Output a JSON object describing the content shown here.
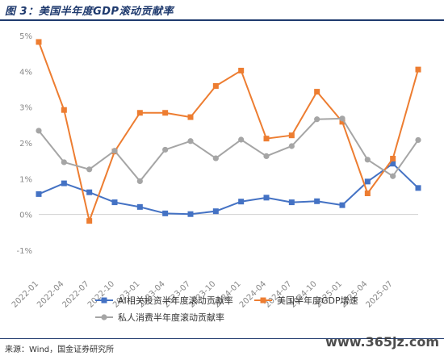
{
  "title": "图 3：美国半年度GDP滚动贡献率",
  "source": "来源：Wind，国金证券研究所",
  "watermark": "www.365jz.com",
  "chart_data": {
    "type": "line",
    "x": [
      "2022-01",
      "2022-02",
      "2022-03",
      "2022-04",
      "2022-05",
      "2022-06",
      "2022-07",
      "2022-08",
      "2022-09",
      "2022-10",
      "2022-11",
      "2022-12",
      "2023-01",
      "2023-02",
      "2023-03",
      "2023-04",
      "2023-05",
      "2023-06",
      "2023-07",
      "2023-08",
      "2023-09",
      "2023-10",
      "2023-11",
      "2023-12",
      "2024-01",
      "2024-02",
      "2024-03",
      "2024-04",
      "2024-05",
      "2024-06",
      "2024-07",
      "2024-08",
      "2024-09",
      "2024-10",
      "2024-11",
      "2024-12",
      "2025-01",
      "2025-02",
      "2025-03",
      "2025-04",
      "2025-05",
      "2025-06",
      "2025-07",
      "2025-08",
      "2025-09",
      "2025-10"
    ],
    "tick_labels": [
      "2022-01",
      "2022-04",
      "2022-07",
      "2022-10",
      "2023-01",
      "2023-04",
      "2023-07",
      "2023-10",
      "2024-01",
      "2024-04",
      "2024-07",
      "2024-10",
      "2025-01",
      "2025-04",
      "2025-07"
    ],
    "ylim": [
      -1,
      5
    ],
    "y_ticks": [
      "-1%",
      "0%",
      "1%",
      "2%",
      "3%",
      "4%",
      "5%"
    ],
    "y_tick_values": [
      -1,
      0,
      1,
      2,
      3,
      4,
      5
    ],
    "legend_position": "bottom",
    "series": [
      {
        "name": "AI相关投资半年度滚动贡献率",
        "color": "#4472c4",
        "marker": "square",
        "values": [
          0.57,
          null,
          null,
          0.87,
          null,
          null,
          0.62,
          null,
          null,
          0.34,
          null,
          null,
          0.21,
          null,
          null,
          0.03,
          null,
          null,
          0.01,
          null,
          null,
          0.09,
          null,
          null,
          0.36,
          null,
          null,
          0.47,
          null,
          null,
          0.34,
          null,
          null,
          0.37,
          null,
          null,
          0.26,
          null,
          null,
          0.92,
          null,
          null,
          1.42,
          null,
          null,
          0.74
        ]
      },
      {
        "name": "美国半年度GDP增速",
        "color": "#ed7d31",
        "marker": "square",
        "values": [
          4.82,
          null,
          null,
          2.92,
          null,
          null,
          -0.18,
          null,
          null,
          1.76,
          null,
          null,
          2.84,
          null,
          null,
          2.84,
          null,
          null,
          2.72,
          null,
          null,
          3.59,
          null,
          null,
          4.02,
          null,
          null,
          2.12,
          null,
          null,
          2.21,
          null,
          null,
          3.43,
          null,
          null,
          2.59,
          null,
          null,
          0.59,
          null,
          null,
          1.56,
          null,
          null,
          4.05
        ]
      },
      {
        "name": "私人消费半年度滚动贡献率",
        "color": "#a5a5a5",
        "marker": "circle",
        "values": [
          2.34,
          null,
          null,
          1.46,
          null,
          null,
          1.26,
          null,
          null,
          1.78,
          null,
          null,
          0.93,
          null,
          null,
          1.81,
          null,
          null,
          2.05,
          null,
          null,
          1.57,
          null,
          null,
          2.09,
          null,
          null,
          1.63,
          null,
          null,
          1.91,
          null,
          null,
          2.66,
          null,
          null,
          2.68,
          null,
          null,
          1.53,
          null,
          null,
          1.07,
          null,
          null,
          2.08
        ]
      }
    ]
  }
}
